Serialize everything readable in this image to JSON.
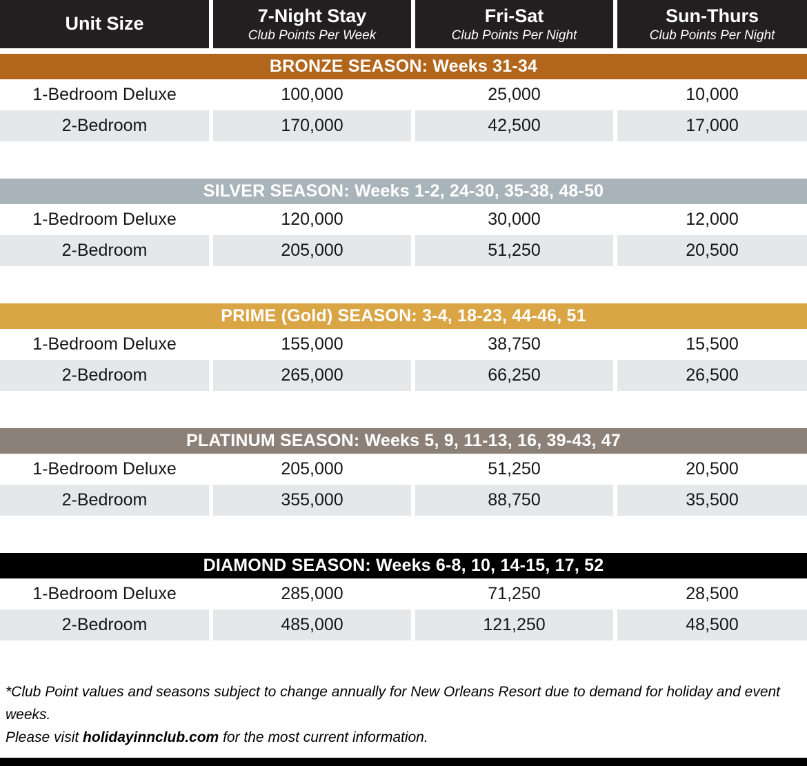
{
  "colors": {
    "header_bg": "#231f20",
    "row_alt_bg": "#e6e7e8",
    "bottom_bar": "#000000"
  },
  "table": {
    "columns": [
      {
        "title": "Unit Size",
        "subtitle": ""
      },
      {
        "title": "7-Night Stay",
        "subtitle": "Club Points Per Week"
      },
      {
        "title": "Fri-Sat",
        "subtitle": "Club Points Per Night"
      },
      {
        "title": "Sun-Thurs",
        "subtitle": "Club Points Per Night"
      }
    ],
    "seasons": [
      {
        "label": "BRONZE SEASON: Weeks 31-34",
        "color": "#b2661b",
        "rows": [
          {
            "unit": "1-Bedroom Deluxe",
            "week": "100,000",
            "fri_sat": "25,000",
            "sun_thurs": "10,000"
          },
          {
            "unit": "2-Bedroom",
            "week": "170,000",
            "fri_sat": "42,500",
            "sun_thurs": "17,000"
          }
        ]
      },
      {
        "label": "SILVER SEASON: Weeks 1-2, 24-30, 35-38, 48-50",
        "color": "#a9b3ba",
        "rows": [
          {
            "unit": "1-Bedroom Deluxe",
            "week": "120,000",
            "fri_sat": "30,000",
            "sun_thurs": "12,000"
          },
          {
            "unit": "2-Bedroom",
            "week": "205,000",
            "fri_sat": "51,250",
            "sun_thurs": "20,500"
          }
        ]
      },
      {
        "label": "PRIME (Gold) SEASON: 3-4, 18-23, 44-46, 51",
        "color": "#d9a545",
        "rows": [
          {
            "unit": "1-Bedroom Deluxe",
            "week": "155,000",
            "fri_sat": "38,750",
            "sun_thurs": "15,500"
          },
          {
            "unit": "2-Bedroom",
            "week": "265,000",
            "fri_sat": "66,250",
            "sun_thurs": "26,500"
          }
        ]
      },
      {
        "label": "PLATINUM SEASON: Weeks 5, 9, 11-13, 16, 39-43, 47",
        "color": "#8c8178",
        "rows": [
          {
            "unit": "1-Bedroom Deluxe",
            "week": "205,000",
            "fri_sat": "51,250",
            "sun_thurs": "20,500"
          },
          {
            "unit": "2-Bedroom",
            "week": "355,000",
            "fri_sat": "88,750",
            "sun_thurs": "35,500"
          }
        ]
      },
      {
        "label": "DIAMOND SEASON: Weeks 6-8, 10, 14-15, 17, 52",
        "color": "#000000",
        "rows": [
          {
            "unit": "1-Bedroom Deluxe",
            "week": "285,000",
            "fri_sat": "71,250",
            "sun_thurs": "28,500"
          },
          {
            "unit": "2-Bedroom",
            "week": "485,000",
            "fri_sat": "121,250",
            "sun_thurs": "48,500"
          }
        ]
      }
    ]
  },
  "footnote": {
    "line1": "*Club Point values and seasons subject to change annually for New Orleans Resort due to demand for holiday and event weeks.",
    "line2_prefix": "Please visit ",
    "line2_bold": "holidayinnclub.com",
    "line2_suffix": " for the most current information."
  }
}
